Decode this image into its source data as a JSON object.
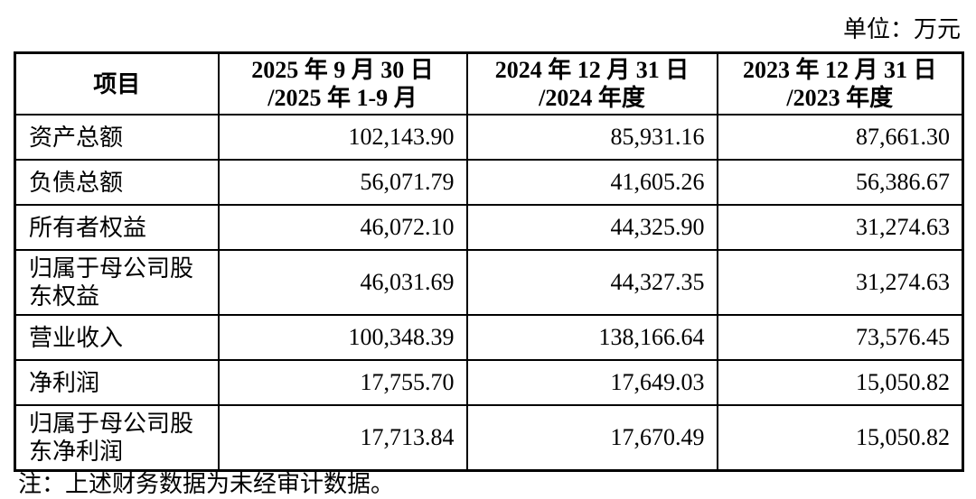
{
  "unit_label": "单位：万元",
  "table": {
    "columns": [
      {
        "lines": [
          "项目"
        ]
      },
      {
        "lines": [
          "2025 年 9 月 30 日",
          "/2025 年 1-9 月"
        ]
      },
      {
        "lines": [
          "2024 年 12 月 31 日",
          "/2024 年度"
        ]
      },
      {
        "lines": [
          "2023 年 12 月 31 日",
          "/2023 年度"
        ]
      }
    ],
    "rows": [
      {
        "item": "资产总额",
        "values": [
          "102,143.90",
          "85,931.16",
          "87,661.30"
        ]
      },
      {
        "item": "负债总额",
        "values": [
          "56,071.79",
          "41,605.26",
          "56,386.67"
        ]
      },
      {
        "item": "所有者权益",
        "values": [
          "46,072.10",
          "44,325.90",
          "31,274.63"
        ]
      },
      {
        "item": "归属于母公司股东权益",
        "values": [
          "46,031.69",
          "44,327.35",
          "31,274.63"
        ]
      },
      {
        "item": "营业收入",
        "values": [
          "100,348.39",
          "138,166.64",
          "73,576.45"
        ]
      },
      {
        "item": "净利润",
        "values": [
          "17,755.70",
          "17,649.03",
          "15,050.82"
        ]
      },
      {
        "item": "归属于母公司股东净利润",
        "values": [
          "17,713.84",
          "17,670.49",
          "15,050.82"
        ]
      }
    ]
  },
  "note": "注：上述财务数据为未经审计数据。",
  "colors": {
    "text": "#000000",
    "border": "#000000",
    "background": "#ffffff"
  }
}
